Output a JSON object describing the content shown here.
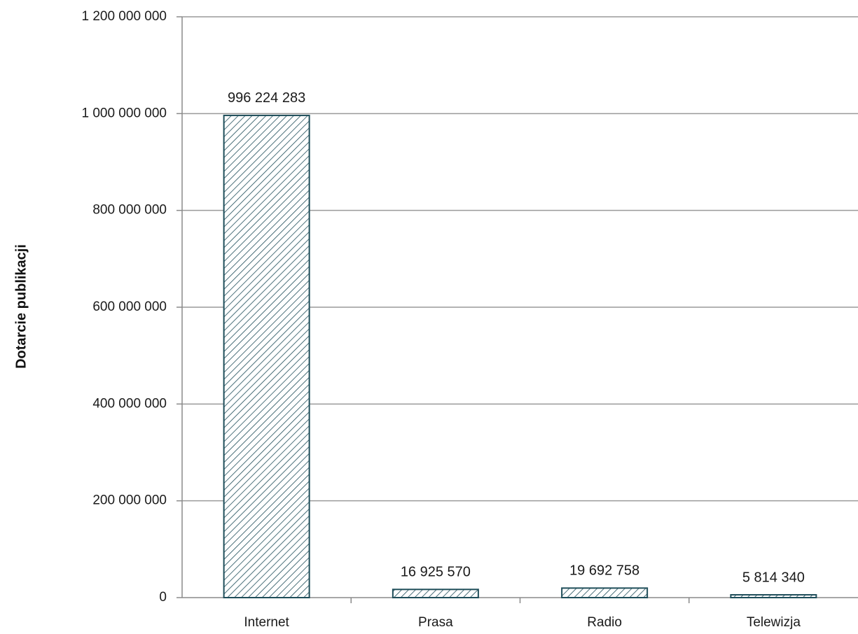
{
  "chart_data": {
    "type": "bar",
    "title": "",
    "xlabel": "",
    "ylabel": "Dotarcie publikacji",
    "categories": [
      "Internet",
      "Prasa",
      "Radio",
      "Telewizja"
    ],
    "values": [
      996224283,
      16925570,
      19692758,
      5814340
    ],
    "data_labels": [
      "996 224 283",
      "16 925 570",
      "19 692 758",
      "5 814 340"
    ],
    "ylim": [
      0,
      1200000000
    ],
    "yticks": [
      0,
      200000000,
      400000000,
      600000000,
      800000000,
      1000000000,
      1200000000
    ],
    "ytick_labels": [
      "0",
      "200 000 000",
      "400 000 000",
      "600 000 000",
      "800 000 000",
      "1 000 000 000",
      "1 200 000 000"
    ],
    "grid": true,
    "legend": "none",
    "bar_fill": "hatched",
    "colors": {
      "bar_edge": "#1f4e5a",
      "hatch": "#1f4e5a",
      "grid": "#9a9a9a",
      "axis": "#8a8a8a"
    }
  }
}
